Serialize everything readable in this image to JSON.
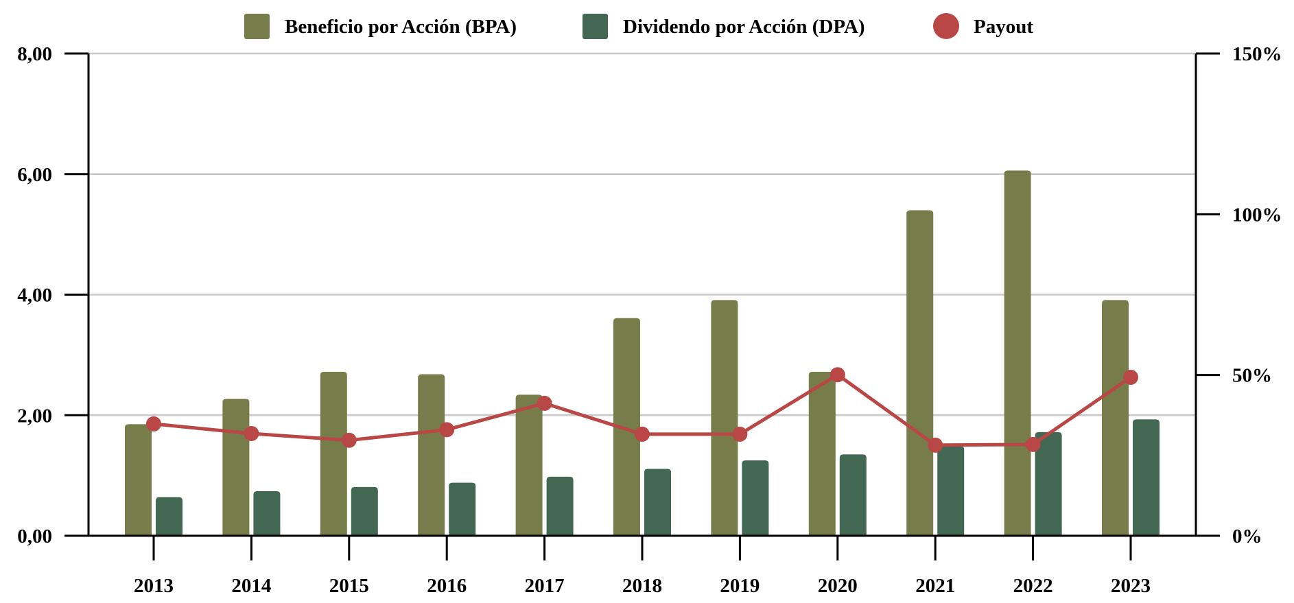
{
  "chart_data": {
    "type": "bar",
    "title": "",
    "xlabel": "",
    "ylabel": "",
    "y2label": "",
    "categories": [
      "2013",
      "2014",
      "2015",
      "2016",
      "2017",
      "2018",
      "2019",
      "2020",
      "2021",
      "2022",
      "2023"
    ],
    "series": [
      {
        "name": "Beneficio por Acción (BPA)",
        "type": "bar",
        "axis": "left",
        "color": "#777D4A",
        "values": [
          1.85,
          2.27,
          2.72,
          2.68,
          2.34,
          3.61,
          3.91,
          2.72,
          5.4,
          6.06,
          3.91
        ]
      },
      {
        "name": "Dividendo por Acción (DPA)",
        "type": "bar",
        "axis": "left",
        "color": "#426854",
        "values": [
          0.64,
          0.74,
          0.81,
          0.88,
          0.98,
          1.11,
          1.25,
          1.35,
          1.49,
          1.72,
          1.93
        ]
      },
      {
        "name": "Payout",
        "type": "line",
        "axis": "right",
        "color": "#B94745",
        "unit": "%",
        "values": [
          34.8,
          31.8,
          29.7,
          33.0,
          41.2,
          31.6,
          31.6,
          50.1,
          28.2,
          28.4,
          49.3
        ]
      }
    ],
    "ylim": [
      0,
      8
    ],
    "yticks": [
      0,
      2,
      4,
      6,
      8
    ],
    "ytick_labels": [
      "0,00",
      "2,00",
      "4,00",
      "6,00",
      "8,00"
    ],
    "y2lim": [
      0,
      150
    ],
    "y2ticks": [
      0,
      50,
      100,
      150
    ],
    "y2tick_labels": [
      "0%",
      "50%",
      "100%",
      "150%"
    ],
    "grid": true,
    "legend": {
      "position": "top-center",
      "items": [
        {
          "label": "Beneficio por Acción (BPA)",
          "marker": "square",
          "color": "#777D4A"
        },
        {
          "label": "Dividendo por Acción (DPA)",
          "marker": "square",
          "color": "#426854"
        },
        {
          "label": "Payout",
          "marker": "circle",
          "color": "#B94745"
        }
      ]
    }
  }
}
